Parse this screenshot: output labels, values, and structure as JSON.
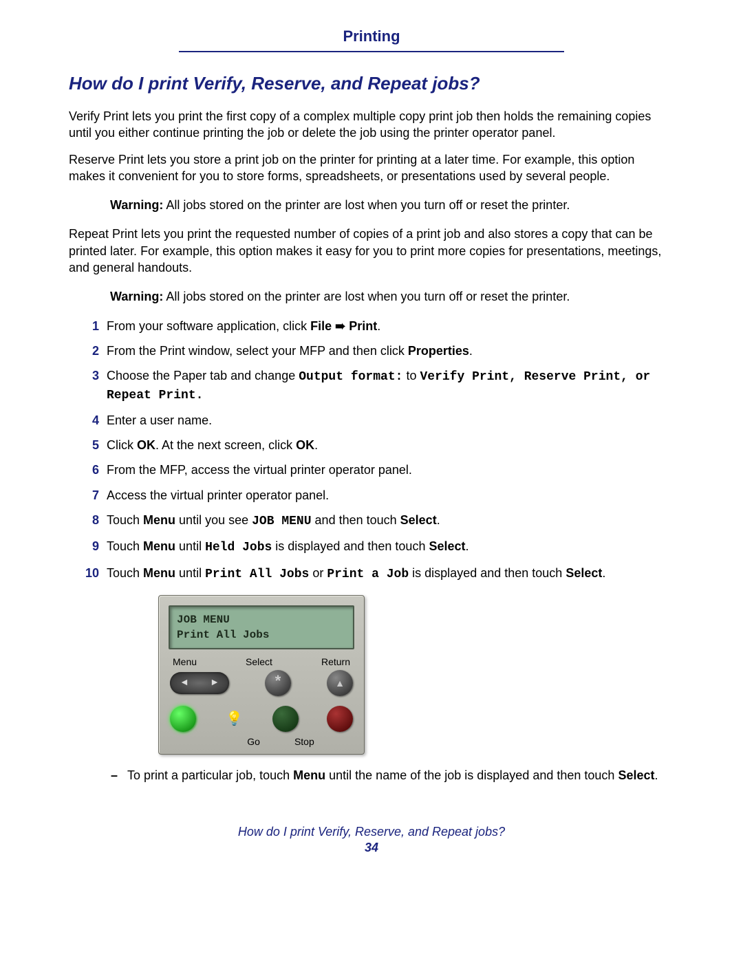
{
  "colors": {
    "heading_blue": "#1a237e",
    "body_text": "#000000",
    "background": "#ffffff",
    "lcd_bg": "#8fb197",
    "panel_bg": "#c0c0b8"
  },
  "header": {
    "category": "Printing"
  },
  "title": "How do I print Verify, Reserve, and Repeat jobs?",
  "paragraphs": {
    "p1": "Verify Print lets you print the first copy of a complex multiple copy print job then holds the remaining copies until you either continue printing the job or delete the job using the printer operator panel.",
    "p2": "Reserve Print lets you store a print job on the printer for printing at a later time. For example, this option makes it convenient for you to store forms, spreadsheets, or presentations used by several people.",
    "p3": "Repeat Print lets you print the requested number of copies of a print job and also stores a copy that can be printed later. For example, this option makes it easy for you to print more copies for presentations, meetings, and general handouts."
  },
  "warnings": {
    "label": "Warning:",
    "text": "All jobs stored on the printer are lost when you turn off or reset the printer."
  },
  "steps": {
    "s1_a": "From your software application, click ",
    "s1_b": "File",
    "s1_arrow": " ➠ ",
    "s1_c": "Print",
    "s1_d": ".",
    "s2_a": "From the Print window, select your MFP and then click ",
    "s2_b": "Properties",
    "s2_c": ".",
    "s3_a": "Choose the Paper tab and change ",
    "s3_mono1": "Output format:",
    "s3_b": " to ",
    "s3_mono2": "Verify Print, Reserve Print, or Repeat Print.",
    "s4": "Enter a user name.",
    "s5_a": "Click ",
    "s5_b": "OK",
    "s5_c": ". At the next screen, click ",
    "s5_d": "OK",
    "s5_e": ".",
    "s6": "From the MFP, access the virtual printer operator panel.",
    "s7": "Access the virtual printer operator panel.",
    "s8_a": "Touch ",
    "s8_b": "Menu",
    "s8_c": " until you see ",
    "s8_mono": "JOB MENU",
    "s8_d": " and then touch ",
    "s8_e": "Select",
    "s8_f": ".",
    "s9_a": "Touch ",
    "s9_b": "Menu",
    "s9_c": " until ",
    "s9_mono": "Held Jobs",
    "s9_d": " is displayed and then touch ",
    "s9_e": "Select",
    "s9_f": ".",
    "s10_a": "Touch ",
    "s10_b": "Menu",
    "s10_c": " until ",
    "s10_mono1": "Print All Jobs",
    "s10_d": " or ",
    "s10_mono2": "Print a Job",
    "s10_e": " is displayed and then touch ",
    "s10_f": "Select",
    "s10_g": "."
  },
  "panel": {
    "lcd_line1": "JOB MENU",
    "lcd_line2": "Print All Jobs",
    "label_menu": "Menu",
    "label_select": "Select",
    "label_return": "Return",
    "label_go": "Go",
    "label_stop": "Stop"
  },
  "sub_bullet": {
    "a": "To print a particular job, touch ",
    "b": "Menu",
    "c": " until the name of the job is displayed and then touch ",
    "d": "Select",
    "e": "."
  },
  "footer": {
    "title": "How do I print Verify, Reserve, and Repeat jobs?",
    "page": "34"
  }
}
